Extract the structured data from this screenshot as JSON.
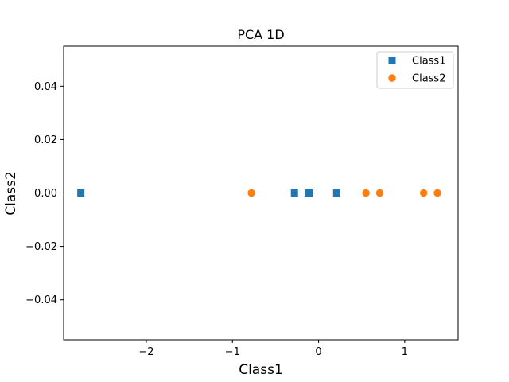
{
  "chart_data": {
    "type": "scatter",
    "title": "PCA 1D",
    "xlabel": "Class1",
    "ylabel": "Class2",
    "xlim": [
      -2.96,
      1.62
    ],
    "ylim": [
      -0.055,
      0.055
    ],
    "xticks": [
      -2,
      -1,
      0,
      1
    ],
    "xtick_labels": [
      "−2",
      "−1",
      "0",
      "1"
    ],
    "yticks": [
      -0.04,
      -0.02,
      0.0,
      0.02,
      0.04
    ],
    "ytick_labels": [
      "−0.04",
      "−0.02",
      "0.00",
      "0.02",
      "0.04"
    ],
    "grid": false,
    "legend_position": "top-right",
    "series": [
      {
        "name": "Class1",
        "marker": "square",
        "color": "#1f77b4",
        "points": [
          {
            "x": -2.76,
            "y": 0.0
          },
          {
            "x": -0.28,
            "y": 0.0
          },
          {
            "x": -0.12,
            "y": 0.0
          },
          {
            "x": -0.11,
            "y": 0.0
          },
          {
            "x": 0.21,
            "y": 0.0
          }
        ]
      },
      {
        "name": "Class2",
        "marker": "circle",
        "color": "#ff7f0e",
        "points": [
          {
            "x": -0.78,
            "y": 0.0
          },
          {
            "x": 0.55,
            "y": 0.0
          },
          {
            "x": 0.71,
            "y": 0.0
          },
          {
            "x": 1.22,
            "y": 0.0
          },
          {
            "x": 1.38,
            "y": 0.0
          }
        ]
      }
    ]
  }
}
